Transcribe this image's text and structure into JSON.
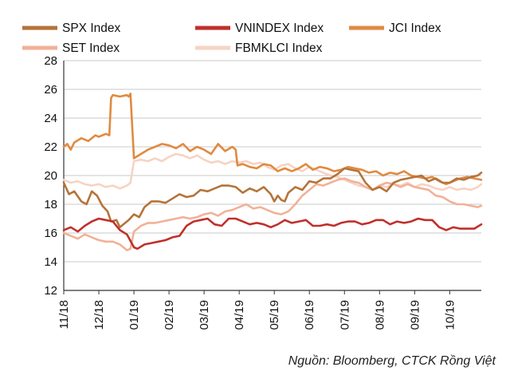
{
  "chart_data": {
    "type": "line",
    "title": "",
    "xlabel": "",
    "ylabel": "",
    "ylim": [
      12,
      28
    ],
    "yticks": [
      12,
      14,
      16,
      18,
      20,
      22,
      24,
      26,
      28
    ],
    "x_tick_labels": [
      "11/18",
      "12/18",
      "01/19",
      "02/19",
      "03/19",
      "04/19",
      "05/19",
      "06/19",
      "07/19",
      "08/19",
      "09/19",
      "10/19"
    ],
    "x_range_months": [
      0,
      11.9
    ],
    "grid": "horizontal",
    "legend_position": "top",
    "series": [
      {
        "name": "SPX Index",
        "color": "#b5733a",
        "x": [
          0,
          0.15,
          0.3,
          0.5,
          0.65,
          0.8,
          0.95,
          1.1,
          1.25,
          1.35,
          1.5,
          1.6,
          1.75,
          1.85,
          2.0,
          2.15,
          2.3,
          2.5,
          2.7,
          2.9,
          3.1,
          3.3,
          3.5,
          3.7,
          3.9,
          4.1,
          4.3,
          4.5,
          4.7,
          4.9,
          5.1,
          5.3,
          5.5,
          5.7,
          5.9,
          6.0,
          6.1,
          6.2,
          6.3,
          6.4,
          6.5,
          6.6,
          6.8,
          7.0,
          7.2,
          7.4,
          7.6,
          7.8,
          8.0,
          8.2,
          8.4,
          8.6,
          8.8,
          9.0,
          9.2,
          9.4,
          9.6,
          9.8,
          10.0,
          10.2,
          10.4,
          10.6,
          10.8,
          11.0,
          11.2,
          11.4,
          11.6,
          11.8,
          11.9
        ],
        "values": [
          19.5,
          18.7,
          18.9,
          18.2,
          18.0,
          18.9,
          18.6,
          17.9,
          17.5,
          16.8,
          16.9,
          16.4,
          16.7,
          16.9,
          17.3,
          17.1,
          17.8,
          18.2,
          18.2,
          18.1,
          18.4,
          18.7,
          18.5,
          18.6,
          19.0,
          18.9,
          19.1,
          19.3,
          19.3,
          19.2,
          18.8,
          19.1,
          18.9,
          19.2,
          18.7,
          18.2,
          18.6,
          18.3,
          18.2,
          18.8,
          19.0,
          19.2,
          19.0,
          19.6,
          19.5,
          19.8,
          19.8,
          20.1,
          20.5,
          20.4,
          20.3,
          19.5,
          19.0,
          19.2,
          18.9,
          19.5,
          19.7,
          19.8,
          19.9,
          20.0,
          19.6,
          19.8,
          19.5,
          19.5,
          19.8,
          19.7,
          19.9,
          20.0,
          20.2
        ]
      },
      {
        "name": "VNINDEX Index",
        "color": "#c0302b",
        "x": [
          0,
          0.2,
          0.4,
          0.6,
          0.8,
          1.0,
          1.2,
          1.4,
          1.6,
          1.8,
          2.0,
          2.1,
          2.3,
          2.5,
          2.7,
          2.9,
          3.1,
          3.3,
          3.5,
          3.7,
          3.9,
          4.1,
          4.3,
          4.5,
          4.7,
          4.9,
          5.1,
          5.3,
          5.5,
          5.7,
          5.9,
          6.1,
          6.3,
          6.5,
          6.7,
          6.9,
          7.1,
          7.3,
          7.5,
          7.7,
          7.9,
          8.1,
          8.3,
          8.5,
          8.7,
          8.9,
          9.1,
          9.3,
          9.5,
          9.7,
          9.9,
          10.1,
          10.3,
          10.5,
          10.7,
          10.9,
          11.1,
          11.3,
          11.5,
          11.7,
          11.9
        ],
        "values": [
          16.2,
          16.4,
          16.1,
          16.5,
          16.8,
          17.0,
          16.9,
          16.8,
          16.2,
          15.9,
          15.0,
          14.9,
          15.2,
          15.3,
          15.4,
          15.5,
          15.7,
          15.8,
          16.5,
          16.8,
          16.9,
          17.0,
          16.6,
          16.5,
          17.0,
          17.0,
          16.8,
          16.6,
          16.7,
          16.6,
          16.4,
          16.6,
          16.9,
          16.7,
          16.8,
          16.9,
          16.5,
          16.5,
          16.6,
          16.5,
          16.7,
          16.8,
          16.8,
          16.6,
          16.7,
          16.9,
          16.9,
          16.6,
          16.8,
          16.7,
          16.8,
          17.0,
          16.9,
          16.9,
          16.4,
          16.2,
          16.4,
          16.3,
          16.3,
          16.3,
          16.6
        ]
      },
      {
        "name": "JCI Index",
        "color": "#e08a40",
        "x": [
          0,
          0.1,
          0.2,
          0.3,
          0.5,
          0.7,
          0.9,
          1.0,
          1.2,
          1.3,
          1.35,
          1.4,
          1.6,
          1.8,
          1.85,
          1.9,
          2.0,
          2.2,
          2.4,
          2.6,
          2.8,
          3.0,
          3.2,
          3.4,
          3.6,
          3.8,
          4.0,
          4.2,
          4.4,
          4.6,
          4.8,
          4.9,
          4.95,
          5.1,
          5.3,
          5.5,
          5.7,
          5.9,
          6.1,
          6.3,
          6.5,
          6.7,
          6.9,
          7.1,
          7.3,
          7.5,
          7.7,
          7.9,
          8.1,
          8.3,
          8.5,
          8.7,
          8.9,
          9.1,
          9.3,
          9.5,
          9.7,
          9.9,
          10.1,
          10.3,
          10.5,
          10.7,
          10.9,
          11.1,
          11.3,
          11.5,
          11.7,
          11.9
        ],
        "values": [
          22.0,
          22.2,
          21.8,
          22.3,
          22.6,
          22.4,
          22.8,
          22.7,
          22.9,
          22.8,
          25.4,
          25.6,
          25.5,
          25.6,
          25.5,
          25.7,
          21.2,
          21.5,
          21.8,
          22.0,
          22.2,
          22.1,
          21.9,
          22.2,
          21.7,
          22.0,
          21.8,
          21.5,
          22.2,
          21.7,
          22.0,
          21.8,
          20.7,
          20.8,
          20.6,
          20.5,
          20.8,
          20.7,
          20.3,
          20.5,
          20.3,
          20.5,
          20.8,
          20.4,
          20.6,
          20.5,
          20.3,
          20.4,
          20.6,
          20.5,
          20.4,
          20.2,
          20.3,
          20.0,
          20.2,
          20.1,
          20.3,
          20.0,
          19.9,
          19.8,
          19.9,
          19.6,
          19.4,
          19.6,
          19.8,
          19.9,
          19.8,
          19.7
        ]
      },
      {
        "name": "SET Index",
        "color": "#f2b197",
        "x": [
          0,
          0.2,
          0.4,
          0.6,
          0.8,
          1.0,
          1.2,
          1.4,
          1.6,
          1.8,
          1.9,
          2.0,
          2.2,
          2.4,
          2.6,
          2.8,
          3.0,
          3.2,
          3.4,
          3.6,
          3.8,
          4.0,
          4.2,
          4.4,
          4.6,
          4.8,
          5.0,
          5.2,
          5.4,
          5.6,
          5.8,
          6.0,
          6.2,
          6.4,
          6.6,
          6.8,
          7.0,
          7.2,
          7.4,
          7.6,
          7.8,
          8.0,
          8.2,
          8.4,
          8.6,
          8.8,
          9.0,
          9.2,
          9.4,
          9.6,
          9.8,
          10.0,
          10.2,
          10.4,
          10.6,
          10.8,
          11.0,
          11.2,
          11.4,
          11.6,
          11.8,
          11.9
        ],
        "values": [
          16.0,
          15.8,
          15.6,
          15.9,
          15.7,
          15.5,
          15.4,
          15.4,
          15.2,
          14.8,
          14.9,
          16.1,
          16.5,
          16.7,
          16.7,
          16.8,
          16.9,
          17.0,
          17.1,
          17.0,
          17.1,
          17.3,
          17.4,
          17.2,
          17.5,
          17.6,
          17.8,
          18.0,
          17.7,
          17.8,
          17.6,
          17.4,
          17.3,
          17.5,
          18.0,
          18.6,
          19.0,
          19.4,
          19.3,
          19.5,
          19.7,
          19.8,
          19.6,
          19.5,
          19.2,
          19.0,
          19.3,
          19.5,
          19.4,
          19.2,
          19.4,
          19.2,
          19.1,
          19.0,
          18.6,
          18.5,
          18.2,
          18.0,
          18.0,
          17.9,
          17.8,
          17.9
        ]
      },
      {
        "name": "FBMKLCI Index",
        "color": "#f6d3c4",
        "x": [
          0,
          0.2,
          0.4,
          0.6,
          0.8,
          1.0,
          1.2,
          1.4,
          1.6,
          1.8,
          1.9,
          2.0,
          2.2,
          2.4,
          2.6,
          2.8,
          3.0,
          3.2,
          3.4,
          3.6,
          3.8,
          4.0,
          4.2,
          4.4,
          4.6,
          4.8,
          5.0,
          5.2,
          5.4,
          5.6,
          5.8,
          6.0,
          6.2,
          6.4,
          6.6,
          6.8,
          7.0,
          7.2,
          7.4,
          7.6,
          7.8,
          8.0,
          8.2,
          8.4,
          8.6,
          8.8,
          9.0,
          9.2,
          9.4,
          9.6,
          9.8,
          10.0,
          10.2,
          10.4,
          10.6,
          10.8,
          11.0,
          11.2,
          11.4,
          11.6,
          11.8,
          11.9
        ],
        "values": [
          19.7,
          19.5,
          19.6,
          19.4,
          19.3,
          19.4,
          19.2,
          19.3,
          19.1,
          19.3,
          19.5,
          21.0,
          21.1,
          21.0,
          21.2,
          21.0,
          21.3,
          21.5,
          21.4,
          21.2,
          21.4,
          21.1,
          20.9,
          21.0,
          20.8,
          21.0,
          20.9,
          21.0,
          20.8,
          20.9,
          20.6,
          20.4,
          20.7,
          20.8,
          20.5,
          20.3,
          20.6,
          20.4,
          20.2,
          20.0,
          19.9,
          19.7,
          19.5,
          19.3,
          19.2,
          19.0,
          19.3,
          19.2,
          19.4,
          19.3,
          19.5,
          19.2,
          19.4,
          19.3,
          19.1,
          19.0,
          19.2,
          19.0,
          19.1,
          19.0,
          19.2,
          19.4
        ]
      }
    ]
  },
  "source_note": "Nguồn: Bloomberg, CTCK Rồng Việt"
}
